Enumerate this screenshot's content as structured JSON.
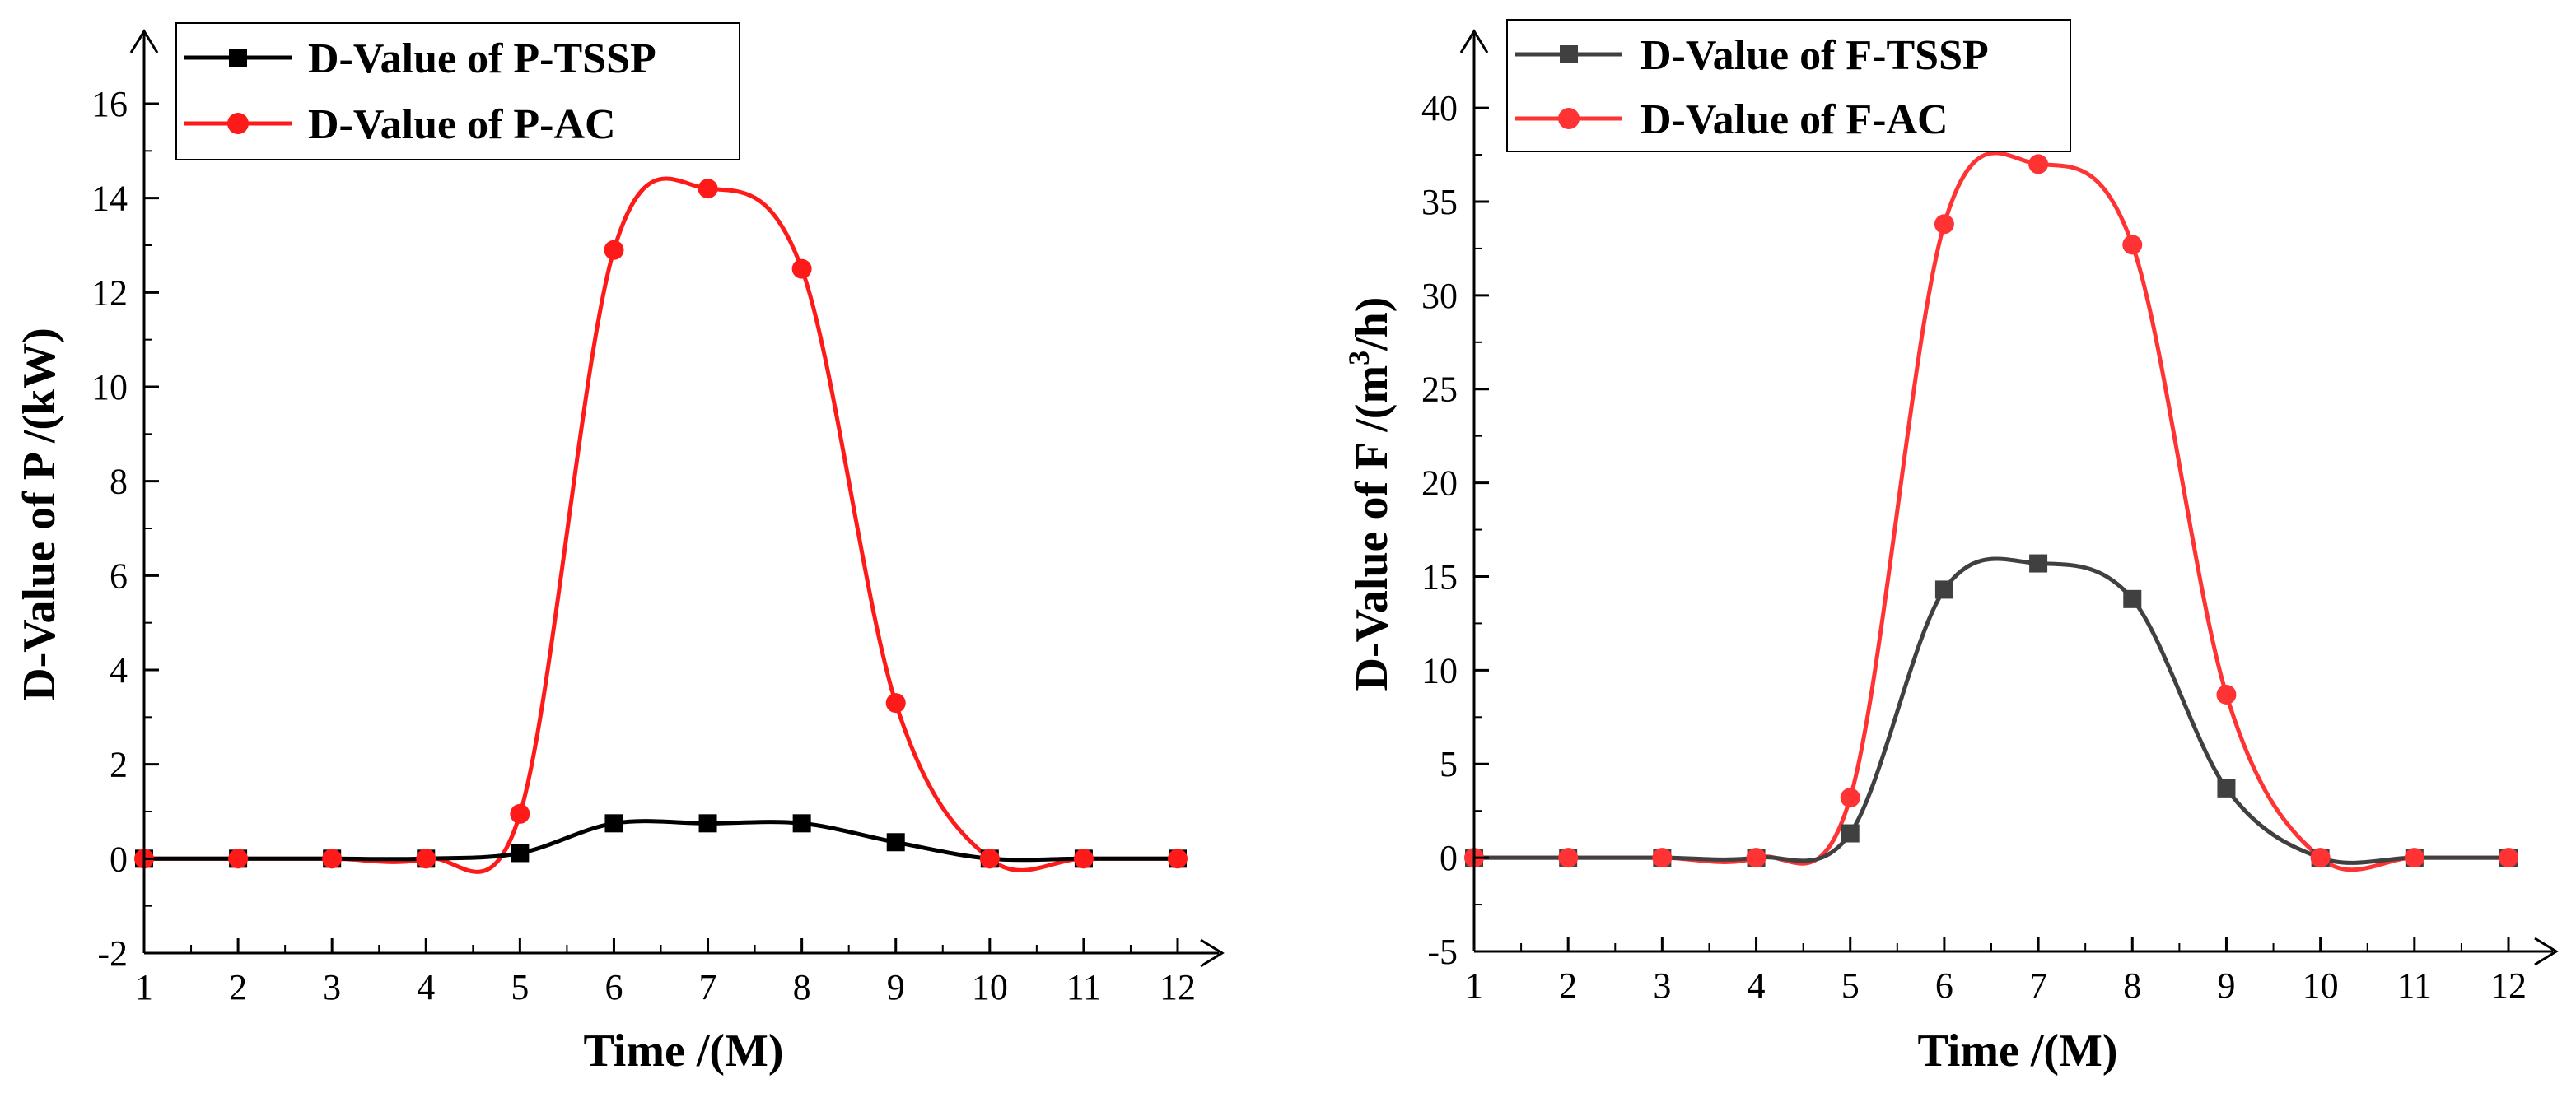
{
  "chart_data": [
    {
      "type": "line",
      "x": [
        1,
        2,
        3,
        4,
        5,
        6,
        7,
        8,
        9,
        10,
        11,
        12
      ],
      "series": [
        {
          "name": "D-Value of P-TSSP",
          "color": "#000000",
          "marker": "square",
          "values": [
            0,
            0,
            0,
            0,
            0.12,
            0.75,
            0.75,
            0.75,
            0.35,
            0,
            0,
            0
          ]
        },
        {
          "name": "D-Value of P-AC",
          "color": "#ff1a1a",
          "marker": "circle",
          "values": [
            0,
            0,
            0,
            0,
            0.95,
            12.9,
            14.2,
            12.5,
            3.3,
            0,
            0,
            0
          ]
        }
      ],
      "xlabel": "Time /(M)",
      "ylabel": "D-Value of P /(kW)",
      "xlim": [
        1,
        12.5
      ],
      "ylim": [
        -2,
        17.5
      ],
      "xticks": [
        1,
        2,
        3,
        4,
        5,
        6,
        7,
        8,
        9,
        10,
        11,
        12
      ],
      "xtick_labels": [
        "1",
        "2",
        "3",
        "4",
        "5",
        "6",
        "7",
        "8",
        "9",
        "10",
        "11",
        "12"
      ],
      "yticks": [
        -2,
        0,
        2,
        4,
        6,
        8,
        10,
        12,
        14,
        16
      ],
      "ytick_labels": [
        "-2",
        "0",
        "2",
        "4",
        "6",
        "8",
        "10",
        "12",
        "14",
        "16"
      ],
      "legend_position": "top-left"
    },
    {
      "type": "line",
      "x": [
        1,
        2,
        3,
        4,
        5,
        6,
        7,
        8,
        9,
        10,
        11,
        12
      ],
      "series": [
        {
          "name": "D-Value of F-TSSP",
          "color": "#404040",
          "marker": "square",
          "values": [
            0,
            0,
            0,
            0,
            1.3,
            14.3,
            15.7,
            13.8,
            3.7,
            0,
            0,
            0
          ]
        },
        {
          "name": "D-Value of F-AC",
          "color": "#ff3333",
          "marker": "circle",
          "values": [
            0,
            0,
            0,
            0,
            3.2,
            33.8,
            37.0,
            32.7,
            8.7,
            0,
            0,
            0
          ]
        }
      ],
      "xlabel": "Time /(M)",
      "ylabel_parts": [
        "D-Value of F /(m",
        "3",
        "/h)"
      ],
      "xlim": [
        1,
        12.5
      ],
      "ylim": [
        -5,
        44
      ],
      "xticks": [
        1,
        2,
        3,
        4,
        5,
        6,
        7,
        8,
        9,
        10,
        11,
        12
      ],
      "xtick_labels": [
        "1",
        "2",
        "3",
        "4",
        "5",
        "6",
        "7",
        "8",
        "9",
        "10",
        "11",
        "12"
      ],
      "yticks": [
        -5,
        0,
        5,
        10,
        15,
        20,
        25,
        30,
        35,
        40
      ],
      "ytick_labels": [
        "-5",
        "0",
        "5",
        "10",
        "15",
        "20",
        "25",
        "30",
        "35",
        "40"
      ],
      "legend_position": "top-left"
    }
  ]
}
